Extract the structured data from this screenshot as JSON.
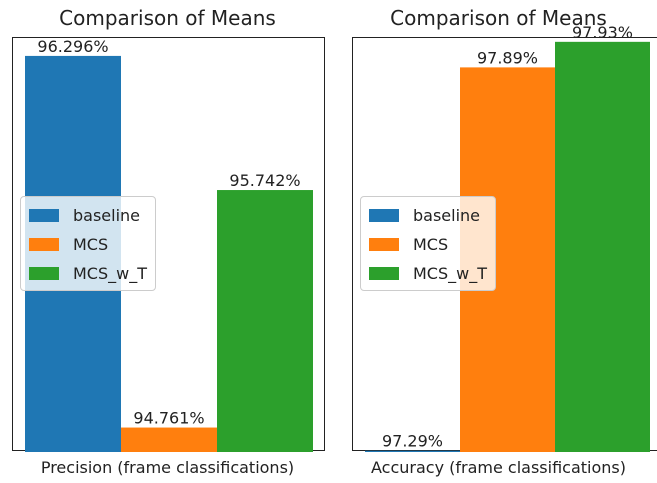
{
  "chart_data": [
    {
      "type": "bar",
      "title": "Comparison of Means",
      "xlabel": "Precision (frame classifications)",
      "ylabel": "",
      "ylim": [
        94.66,
        96.37
      ],
      "series": [
        {
          "name": "baseline",
          "value": 96.296,
          "label": "96.296%",
          "color": "#1f77b4"
        },
        {
          "name": "MCS",
          "value": 94.761,
          "label": "94.761%",
          "color": "#ff7f0e"
        },
        {
          "name": "MCS_w_T",
          "value": 95.742,
          "label": "95.742%",
          "color": "#2ca02c"
        }
      ],
      "legend": "center-left"
    },
    {
      "type": "bar",
      "title": "Comparison of Means",
      "xlabel": "Accuracy (frame classifications)",
      "ylabel": "",
      "ylim": [
        97.288,
        97.936
      ],
      "series": [
        {
          "name": "baseline",
          "value": 97.29,
          "label": "97.29%",
          "color": "#1f77b4"
        },
        {
          "name": "MCS",
          "value": 97.89,
          "label": "97.89%",
          "color": "#ff7f0e"
        },
        {
          "name": "MCS_w_T",
          "value": 97.93,
          "label": "97.93%",
          "color": "#2ca02c"
        }
      ],
      "legend": "center-left"
    }
  ]
}
